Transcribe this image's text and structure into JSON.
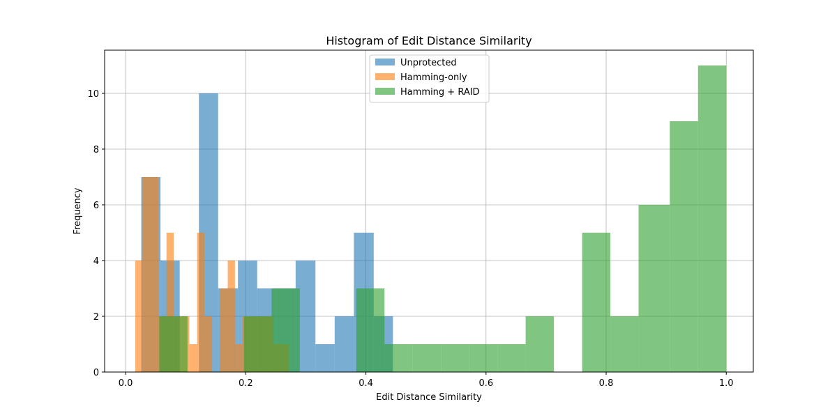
{
  "chart_data": {
    "type": "histogram",
    "title": "Histogram of Edit Distance Similarity",
    "xlabel": "Edit Distance Similarity",
    "ylabel": "Frequency",
    "xlim": [
      -0.035,
      1.045
    ],
    "ylim": [
      0,
      11.55
    ],
    "xticks": [
      "0.0",
      "0.2",
      "0.4",
      "0.6",
      "0.8",
      "1.0"
    ],
    "xtick_values": [
      0.0,
      0.2,
      0.4,
      0.6,
      0.8,
      1.0
    ],
    "yticks": [
      "0",
      "2",
      "4",
      "6",
      "8",
      "10"
    ],
    "ytick_values": [
      0,
      2,
      4,
      6,
      8,
      10
    ],
    "grid": true,
    "legend_position": "top-center",
    "series": [
      {
        "name": "Unprotected",
        "color": "#1f77b4",
        "opacity": 0.6,
        "bins": [
          [
            0.026,
            0.058,
            7
          ],
          [
            0.058,
            0.09,
            4
          ],
          [
            0.09,
            0.122,
            0
          ],
          [
            0.122,
            0.154,
            10
          ],
          [
            0.154,
            0.187,
            3
          ],
          [
            0.187,
            0.219,
            4
          ],
          [
            0.219,
            0.251,
            3
          ],
          [
            0.251,
            0.283,
            3
          ],
          [
            0.283,
            0.316,
            4
          ],
          [
            0.316,
            0.348,
            1
          ],
          [
            0.348,
            0.38,
            2
          ],
          [
            0.38,
            0.413,
            5
          ],
          [
            0.413,
            0.445,
            2
          ]
        ]
      },
      {
        "name": "Hamming-only",
        "color": "#ff7f0e",
        "opacity": 0.6,
        "bins": [
          [
            0.016,
            0.028,
            4
          ],
          [
            0.028,
            0.055,
            7
          ],
          [
            0.055,
            0.068,
            2
          ],
          [
            0.068,
            0.08,
            5
          ],
          [
            0.08,
            0.093,
            2
          ],
          [
            0.093,
            0.106,
            2
          ],
          [
            0.106,
            0.119,
            1
          ],
          [
            0.119,
            0.131,
            5
          ],
          [
            0.131,
            0.144,
            2
          ],
          [
            0.144,
            0.157,
            0
          ],
          [
            0.157,
            0.17,
            3
          ],
          [
            0.17,
            0.182,
            4
          ],
          [
            0.182,
            0.195,
            1
          ],
          [
            0.195,
            0.208,
            2
          ],
          [
            0.208,
            0.221,
            2
          ],
          [
            0.221,
            0.233,
            2
          ],
          [
            0.233,
            0.246,
            2
          ],
          [
            0.246,
            0.259,
            1
          ],
          [
            0.259,
            0.272,
            1
          ]
        ]
      },
      {
        "name": "Hamming + RAID",
        "color": "#2ca02c",
        "opacity": 0.6,
        "bins": [
          [
            0.056,
            0.079,
            2
          ],
          [
            0.079,
            0.103,
            2
          ],
          [
            0.103,
            0.126,
            0
          ],
          [
            0.126,
            0.15,
            0
          ],
          [
            0.15,
            0.173,
            0
          ],
          [
            0.173,
            0.197,
            0
          ],
          [
            0.197,
            0.22,
            2
          ],
          [
            0.22,
            0.243,
            2
          ],
          [
            0.243,
            0.29,
            3
          ],
          [
            0.29,
            0.384,
            0
          ],
          [
            0.384,
            0.431,
            3
          ],
          [
            0.431,
            0.478,
            1
          ],
          [
            0.478,
            0.525,
            1
          ],
          [
            0.525,
            0.572,
            1
          ],
          [
            0.572,
            0.619,
            1
          ],
          [
            0.619,
            0.666,
            1
          ],
          [
            0.666,
            0.713,
            2
          ],
          [
            0.713,
            0.76,
            0
          ],
          [
            0.76,
            0.807,
            5
          ],
          [
            0.807,
            0.854,
            2
          ],
          [
            0.854,
            0.906,
            6
          ],
          [
            0.906,
            0.953,
            9
          ],
          [
            0.953,
            1.0,
            11
          ]
        ]
      }
    ]
  }
}
